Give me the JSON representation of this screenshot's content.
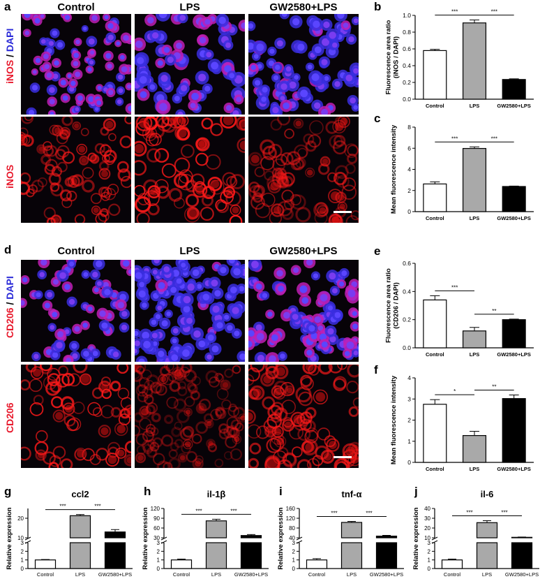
{
  "figure": {
    "panel_letters": [
      "a",
      "b",
      "c",
      "d",
      "e",
      "f",
      "g",
      "h",
      "i",
      "j"
    ],
    "micrograph_columns": [
      "Control",
      "LPS",
      "GW2580+LPS"
    ],
    "section_a": {
      "letter": "a",
      "rows": [
        {
          "stain_red": "iNOS",
          "sep": " / ",
          "stain_blue": "DAPI",
          "kind": "merge"
        },
        {
          "stain_red": "iNOS",
          "sep": "",
          "stain_blue": "",
          "kind": "red"
        }
      ]
    },
    "section_d": {
      "letter": "d",
      "rows": [
        {
          "stain_red": "CD206",
          "sep": " / ",
          "stain_blue": "DAPI",
          "kind": "merge"
        },
        {
          "stain_red": "CD206",
          "sep": "",
          "stain_blue": "",
          "kind": "red"
        }
      ]
    },
    "colors": {
      "red_stain": "#e8192c",
      "blue_stain": "#2a2ad8",
      "control_fill": "#ffffff",
      "lps_fill": "#a9a9a9",
      "gw_fill": "#000000"
    }
  },
  "chart_data": [
    {
      "id": "b",
      "type": "bar",
      "categories": [
        "Control",
        "LPS",
        "GW2580+LPS"
      ],
      "values": [
        0.58,
        0.91,
        0.235
      ],
      "errors": [
        0.015,
        0.035,
        0.008
      ],
      "ylabel": "Fluorescence area ratio\n(iNOS / DAPI)",
      "ylim": [
        0,
        1.0
      ],
      "yticks": [
        "0.0",
        "0.2",
        "0.4",
        "0.6",
        "0.8",
        "1.0"
      ],
      "significance": [
        {
          "from": 0,
          "to": 1,
          "label": "***"
        },
        {
          "from": 1,
          "to": 2,
          "label": "***"
        }
      ]
    },
    {
      "id": "c",
      "type": "bar",
      "categories": [
        "Control",
        "LPS",
        "GW2580+LPS"
      ],
      "values": [
        2.62,
        5.98,
        2.38
      ],
      "errors": [
        0.2,
        0.15,
        0.04
      ],
      "ylabel": "Mean fluorescence intensity",
      "ylim": [
        0,
        8
      ],
      "yticks": [
        "0",
        "2",
        "4",
        "6",
        "8"
      ],
      "significance": [
        {
          "from": 0,
          "to": 1,
          "label": "***"
        },
        {
          "from": 1,
          "to": 2,
          "label": "***"
        }
      ]
    },
    {
      "id": "e",
      "type": "bar",
      "categories": [
        "Control",
        "LPS",
        "GW2580+LPS"
      ],
      "values": [
        0.34,
        0.12,
        0.2
      ],
      "errors": [
        0.03,
        0.025,
        0.004
      ],
      "ylabel": "Fluorescence area ratio\n(CD206 / DAPI)",
      "ylim": [
        0,
        0.6
      ],
      "yticks": [
        "0.0",
        "0.2",
        "0.4",
        "0.6"
      ],
      "significance": [
        {
          "from": 0,
          "to": 1,
          "label": "***"
        },
        {
          "from": 1,
          "to": 2,
          "label": "**"
        }
      ]
    },
    {
      "id": "f",
      "type": "bar",
      "categories": [
        "Control",
        "LPS",
        "GW2580+LPS"
      ],
      "values": [
        2.75,
        1.27,
        3.02
      ],
      "errors": [
        0.22,
        0.2,
        0.17
      ],
      "ylabel": "Mean fluorescence intensity",
      "ylim": [
        0,
        4
      ],
      "yticks": [
        "0",
        "1",
        "2",
        "3",
        "4"
      ],
      "significance": [
        {
          "from": 0,
          "to": 1,
          "label": "*"
        },
        {
          "from": 1,
          "to": 2,
          "label": "**"
        }
      ]
    },
    {
      "id": "g",
      "type": "bar",
      "title": "ccl2",
      "categories": [
        "Control",
        "LPS",
        "GW2580+LPS"
      ],
      "values": [
        1.0,
        21.3,
        13.0
      ],
      "errors": [
        0.05,
        0.6,
        1.2
      ],
      "ylabel": "Relative expression",
      "broken_axis": true,
      "lower_range": [
        0,
        3
      ],
      "lower_ticks": [
        "0",
        "1",
        "2",
        "3"
      ],
      "upper_range": [
        10,
        25
      ],
      "upper_ticks": [
        "10",
        "20"
      ],
      "significance": [
        {
          "from": 0,
          "to": 1,
          "label": "***"
        },
        {
          "from": 1,
          "to": 2,
          "label": "***"
        }
      ]
    },
    {
      "id": "h",
      "type": "bar",
      "title": "il-1β",
      "categories": [
        "Control",
        "LPS",
        "GW2580+LPS"
      ],
      "values": [
        1.0,
        82.0,
        37.0
      ],
      "errors": [
        0.1,
        5.0,
        3.0
      ],
      "ylabel": "Relative expression",
      "broken_axis": true,
      "lower_range": [
        0,
        3
      ],
      "lower_ticks": [
        "0",
        "1",
        "2",
        "3"
      ],
      "upper_range": [
        30,
        120
      ],
      "upper_ticks": [
        "30",
        "60",
        "90",
        "120"
      ],
      "significance": [
        {
          "from": 0,
          "to": 1,
          "label": "***"
        },
        {
          "from": 1,
          "to": 2,
          "label": "***"
        }
      ]
    },
    {
      "id": "i",
      "type": "bar",
      "title": "tnf-α",
      "categories": [
        "Control",
        "LPS",
        "GW2580+LPS"
      ],
      "values": [
        1.0,
        103.0,
        47.0
      ],
      "errors": [
        0.15,
        4.0,
        3.0
      ],
      "ylabel": "Relative expression",
      "broken_axis": true,
      "lower_range": [
        0,
        3
      ],
      "lower_ticks": [
        "0",
        "1",
        "2",
        "3"
      ],
      "upper_range": [
        40,
        160
      ],
      "upper_ticks": [
        "40",
        "80",
        "120",
        "160"
      ],
      "significance": [
        {
          "from": 0,
          "to": 1,
          "label": "***"
        },
        {
          "from": 1,
          "to": 2,
          "label": "***"
        }
      ]
    },
    {
      "id": "j",
      "type": "bar",
      "title": "il-6",
      "categories": [
        "Control",
        "LPS",
        "GW2580+LPS"
      ],
      "values": [
        1.0,
        25.5,
        10.5
      ],
      "errors": [
        0.1,
        2.0,
        0.3
      ],
      "ylabel": "Relative expression",
      "broken_axis": true,
      "lower_range": [
        0,
        3
      ],
      "lower_ticks": [
        "0",
        "1",
        "2",
        "3"
      ],
      "upper_range": [
        10,
        40
      ],
      "upper_ticks": [
        "10",
        "20",
        "30",
        "40"
      ],
      "significance": [
        {
          "from": 0,
          "to": 1,
          "label": "***"
        },
        {
          "from": 1,
          "to": 2,
          "label": "***"
        }
      ]
    }
  ]
}
